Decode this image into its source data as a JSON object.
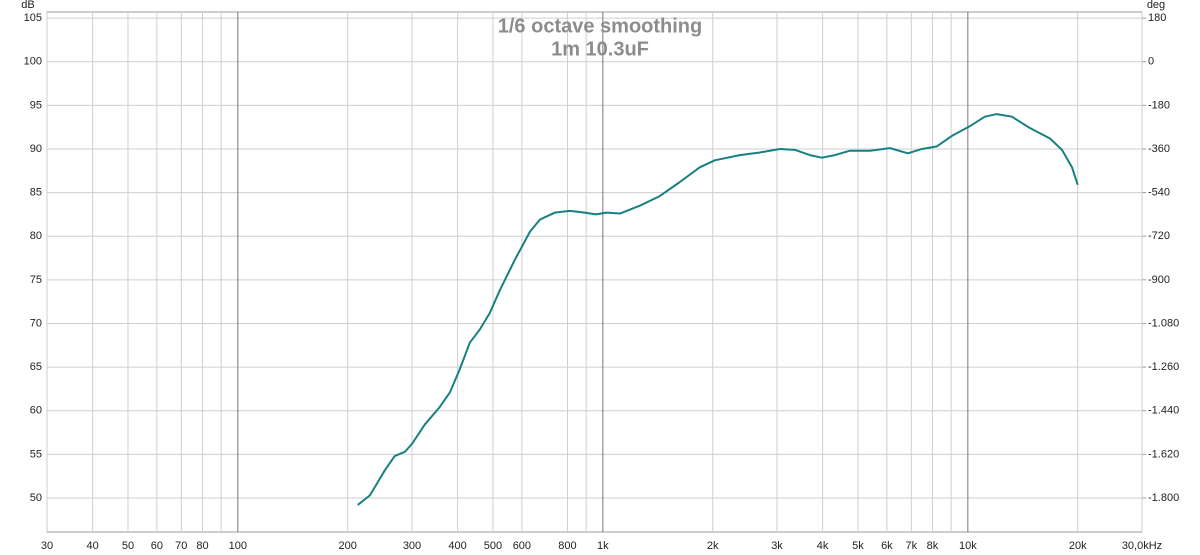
{
  "chart_data": {
    "type": "line",
    "title": "1/6 octave smoothing",
    "subtitle": "1m 10.3uF",
    "y_unit": "dB",
    "y2_unit": "deg",
    "x_scale": "log",
    "grid": true,
    "x": [
      213,
      230,
      253,
      269,
      287,
      300,
      325,
      357,
      381,
      405,
      432,
      460,
      490,
      522,
      574,
      631,
      672,
      738,
      812,
      892,
      957,
      1023,
      1114,
      1263,
      1432,
      1624,
      1843,
      2026,
      2373,
      2692,
      3054,
      3357,
      3690,
      3981,
      4323,
      4753,
      5396,
      6117,
      6851,
      7487,
      8227,
      9043,
      10117,
      11130,
      12000,
      13200,
      14790,
      16790,
      18110,
      19290,
      20000
    ],
    "series": [
      {
        "color": "#178080",
        "axis": "y",
        "values": [
          49.2,
          50.3,
          53.2,
          54.8,
          55.3,
          56.2,
          58.4,
          60.4,
          62.1,
          64.7,
          67.8,
          69.3,
          71.2,
          73.8,
          77.3,
          80.5,
          81.9,
          82.7,
          82.9,
          82.7,
          82.5,
          82.7,
          82.6,
          83.5,
          84.6,
          86.2,
          87.9,
          88.7,
          89.3,
          89.6,
          90.0,
          89.9,
          89.3,
          89.0,
          89.3,
          89.8,
          89.8,
          90.1,
          89.5,
          90.0,
          90.3,
          91.5,
          92.6,
          93.7,
          94.0,
          93.7,
          92.4,
          91.2,
          89.9,
          87.9,
          85.9
        ]
      }
    ],
    "xlim": [
      30,
      30000
    ],
    "xticks": [
      30,
      40,
      50,
      60,
      70,
      80,
      100,
      200,
      300,
      400,
      500,
      600,
      800,
      {
        "value": 1000,
        "label": "1k"
      },
      {
        "value": 2000,
        "label": "2k"
      },
      {
        "value": 3000,
        "label": "3k"
      },
      {
        "value": 4000,
        "label": "4k"
      },
      {
        "value": 5000,
        "label": "5k"
      },
      {
        "value": 6000,
        "label": "6k"
      },
      {
        "value": 7000,
        "label": "7k"
      },
      {
        "value": 8000,
        "label": "8k"
      },
      {
        "value": 10000,
        "label": "10k"
      },
      {
        "value": 20000,
        "label": "20k"
      },
      {
        "value": 30000,
        "label": "30,0kHz"
      }
    ],
    "xminor": [
      90,
      900,
      9000
    ],
    "ylim": [
      46.1,
      105.7
    ],
    "yticks": [
      50,
      55,
      60,
      65,
      70,
      75,
      80,
      85,
      90,
      95,
      100,
      105
    ],
    "y2lim": [
      -1940.4,
      205.2
    ],
    "y2ticks": [
      {
        "value": -1800,
        "label": "-1.800"
      },
      {
        "value": -1620,
        "label": "-1.620"
      },
      {
        "value": -1440,
        "label": "-1.440"
      },
      {
        "value": -1260,
        "label": "-1.260"
      },
      {
        "value": -1080,
        "label": "-1.080"
      },
      -900,
      -720,
      -540,
      -360,
      -180,
      0,
      180
    ]
  }
}
